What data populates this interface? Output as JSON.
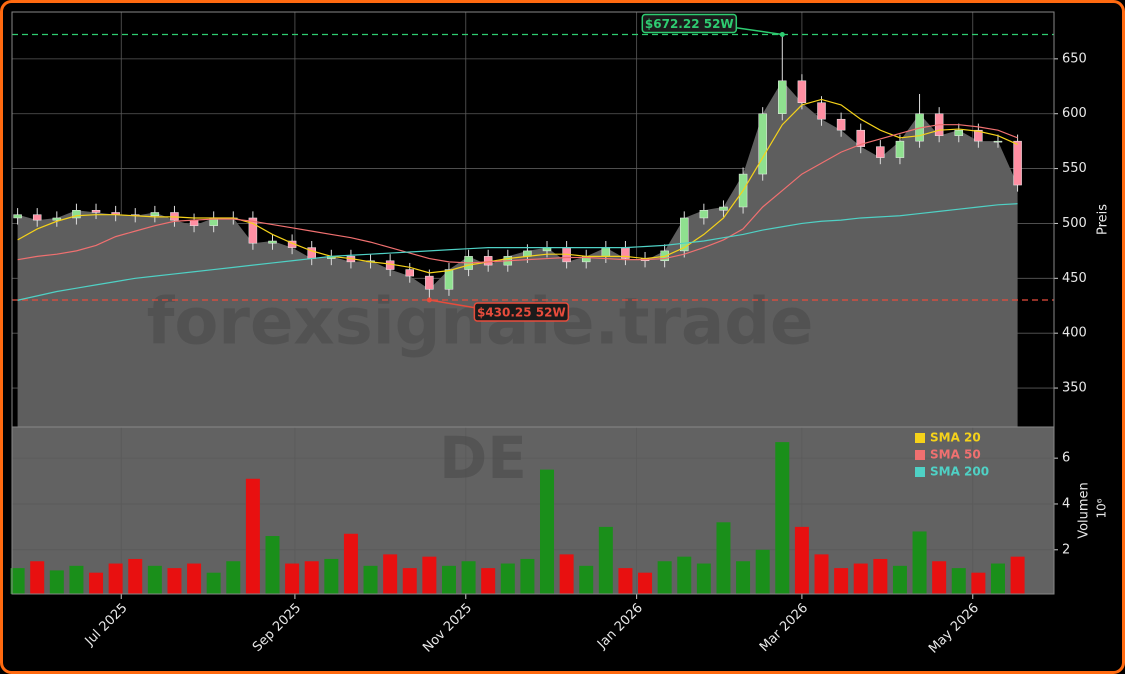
{
  "chart_data": [
    {
      "type": "candlestick",
      "xlim": [
        0,
        372
      ],
      "ylim": [
        314.5,
        692.7
      ],
      "yticks": [
        350,
        400,
        450,
        500,
        550,
        600,
        650
      ],
      "grid": true,
      "y_label": "Preis",
      "watermark": "forexsignale.trade",
      "up_color": "#8fe08f",
      "down_color": "#ff8fa3",
      "area_color": "#5e5e5e",
      "x": [
        2,
        9,
        16,
        23,
        30,
        37,
        44,
        51,
        58,
        65,
        72,
        79,
        86,
        93,
        100,
        107,
        114,
        121,
        128,
        135,
        142,
        149,
        156,
        163,
        170,
        177,
        184,
        191,
        198,
        205,
        212,
        219,
        226,
        233,
        240,
        247,
        254,
        261,
        268,
        275,
        282,
        289,
        296,
        303,
        310,
        317,
        324,
        331,
        338,
        345,
        352,
        359
      ],
      "open": [
        505,
        508,
        503,
        505,
        512,
        510,
        508,
        507,
        510,
        503,
        498,
        505,
        505,
        482,
        484,
        478,
        468,
        470,
        465,
        466,
        458,
        452,
        440,
        458,
        470,
        462,
        470,
        475,
        478,
        465,
        470,
        478,
        468,
        466,
        475,
        505,
        512,
        515,
        545,
        600,
        630,
        610,
        595,
        585,
        570,
        560,
        575,
        600,
        580,
        585,
        575,
        575
      ],
      "high": [
        514,
        514,
        511,
        518,
        518,
        516,
        514,
        516,
        516,
        509,
        511,
        511,
        511,
        490,
        490,
        484,
        476,
        476,
        472,
        472,
        464,
        458,
        464,
        476,
        476,
        476,
        481,
        484,
        484,
        476,
        484,
        484,
        474,
        481,
        511,
        518,
        521,
        551,
        606,
        672.22,
        636,
        616,
        601,
        591,
        576,
        581,
        618,
        606,
        591,
        591,
        581,
        581
      ],
      "low": [
        499,
        497,
        497,
        499,
        504,
        502,
        501,
        501,
        497,
        492,
        492,
        499,
        476,
        476,
        472,
        462,
        462,
        459,
        459,
        452,
        446,
        430.25,
        434,
        452,
        456,
        456,
        464,
        469,
        459,
        459,
        464,
        462,
        460,
        460,
        469,
        499,
        506,
        509,
        539,
        594,
        604,
        589,
        579,
        564,
        554,
        554,
        569,
        574,
        574,
        569,
        569,
        529
      ],
      "close": [
        508,
        503,
        505,
        512,
        510,
        508,
        507,
        510,
        503,
        498,
        505,
        505,
        482,
        484,
        478,
        468,
        470,
        465,
        466,
        458,
        452,
        440,
        458,
        470,
        462,
        470,
        475,
        478,
        465,
        470,
        478,
        468,
        466,
        475,
        505,
        512,
        515,
        545,
        600,
        630,
        610,
        595,
        585,
        570,
        560,
        575,
        600,
        580,
        585,
        575,
        575,
        535
      ],
      "series": [
        {
          "name": "SMA 20",
          "color": "#f5d21a",
          "values": [
            485,
            495,
            502,
            507,
            508,
            508,
            507,
            506,
            506,
            505,
            505,
            505,
            500,
            490,
            482,
            475,
            470,
            468,
            465,
            463,
            460,
            455,
            457,
            462,
            465,
            468,
            470,
            472,
            472,
            470,
            470,
            470,
            468,
            470,
            478,
            490,
            505,
            530,
            560,
            590,
            608,
            613,
            608,
            595,
            585,
            578,
            580,
            585,
            586,
            584,
            580,
            572
          ]
        },
        {
          "name": "SMA 50",
          "color": "#f07070",
          "values": [
            467,
            470,
            472,
            475,
            480,
            488,
            493,
            498,
            502,
            503,
            504,
            504,
            502,
            499,
            496,
            493,
            490,
            487,
            483,
            478,
            473,
            468,
            465,
            464,
            465,
            466,
            467,
            468,
            469,
            469,
            468,
            467,
            467,
            468,
            472,
            478,
            485,
            495,
            515,
            530,
            545,
            555,
            565,
            572,
            577,
            582,
            587,
            590,
            590,
            588,
            585,
            578
          ]
        },
        {
          "name": "SMA 200",
          "color": "#4fd1c5",
          "values": [
            430,
            434,
            438,
            441,
            444,
            447,
            450,
            452,
            454,
            456,
            458,
            460,
            462,
            464,
            466,
            468,
            470,
            471,
            472,
            473,
            474,
            475,
            476,
            477,
            478,
            478,
            478,
            478,
            478,
            478,
            478,
            478,
            479,
            480,
            482,
            484,
            487,
            490,
            494,
            497,
            500,
            502,
            503,
            505,
            506,
            507,
            509,
            511,
            513,
            515,
            517,
            518
          ]
        }
      ],
      "annotations": [
        {
          "value": 672.22,
          "x": 275,
          "label": "$672.22 52W",
          "color": "#2ecc71"
        },
        {
          "value": 430.25,
          "x": 149,
          "label": "$430.25 52W",
          "color": "#e74c3c"
        }
      ]
    },
    {
      "type": "bar",
      "xlim": [
        0,
        372
      ],
      "ylim": [
        0.07,
        7.36
      ],
      "yticks": [
        2,
        4,
        6
      ],
      "grid": true,
      "y_label": "Volumen",
      "scale_label": "10⁶",
      "watermark": "DE",
      "legend": "upper right",
      "up_color": "#1a8f1a",
      "down_color": "#e81010",
      "xticks": [
        {
          "value": 39,
          "label": "Jul 2025"
        },
        {
          "value": 101,
          "label": "Sep 2025"
        },
        {
          "value": 162,
          "label": "Nov 2025"
        },
        {
          "value": 223,
          "label": "Jan 2026"
        },
        {
          "value": 282,
          "label": "Mar 2026"
        },
        {
          "value": 343,
          "label": "May 2026"
        }
      ],
      "x": [
        2,
        9,
        16,
        23,
        30,
        37,
        44,
        51,
        58,
        65,
        72,
        79,
        86,
        93,
        100,
        107,
        114,
        121,
        128,
        135,
        142,
        149,
        156,
        163,
        170,
        177,
        184,
        191,
        198,
        205,
        212,
        219,
        226,
        233,
        240,
        247,
        254,
        261,
        268,
        275,
        282,
        289,
        296,
        303,
        310,
        317,
        324,
        331,
        338,
        345,
        352,
        359
      ],
      "values": [
        1.2,
        1.5,
        1.1,
        1.3,
        1.0,
        1.4,
        1.6,
        1.3,
        1.2,
        1.4,
        1.0,
        1.5,
        5.1,
        2.6,
        1.4,
        1.5,
        1.6,
        2.7,
        1.3,
        1.8,
        1.2,
        1.7,
        1.3,
        1.5,
        1.2,
        1.4,
        1.6,
        5.5,
        1.8,
        1.3,
        3.0,
        1.2,
        1.0,
        1.5,
        1.7,
        1.4,
        3.2,
        1.5,
        2.0,
        6.7,
        3.0,
        1.8,
        1.2,
        1.4,
        1.6,
        1.3,
        2.8,
        1.5,
        1.2,
        1.0,
        1.4,
        1.7
      ]
    }
  ]
}
